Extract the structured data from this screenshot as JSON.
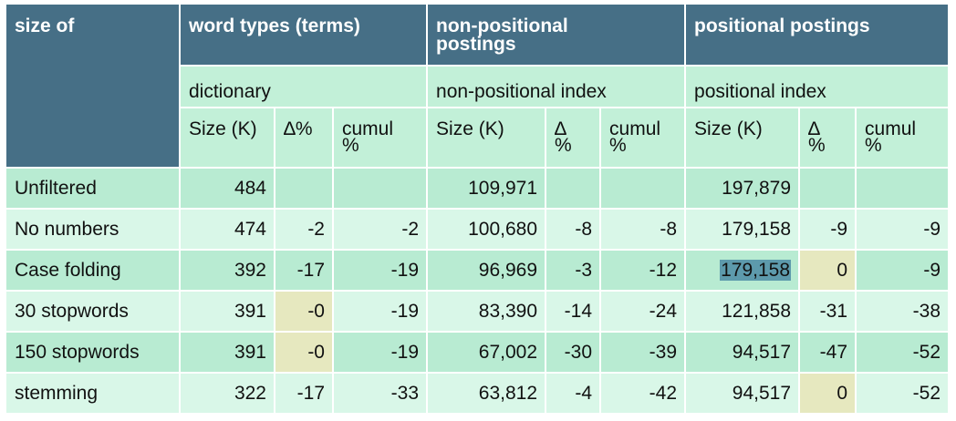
{
  "header": {
    "size_of": "size of",
    "groups": [
      "word types (terms)",
      "non-positional postings",
      "positional postings"
    ],
    "non_pos_line1": "non-positional",
    "non_pos_line2": "postings"
  },
  "subheader": [
    "dictionary",
    "non-positional index",
    "positional index"
  ],
  "columns": {
    "size_k": "Size (K)",
    "delta_pct": "∆%",
    "delta": "∆",
    "pct": "%",
    "cumul": "cumul",
    "cumul_pct": "%"
  },
  "rows": [
    {
      "label": "Unfiltered",
      "vals": [
        "484",
        "",
        "",
        "109,971",
        "",
        "",
        "197,879",
        "",
        ""
      ]
    },
    {
      "label": "No numbers",
      "vals": [
        "474",
        "-2",
        "-2",
        "100,680",
        "-8",
        "-8",
        "179,158",
        "-9",
        "-9"
      ]
    },
    {
      "label": "Case folding",
      "vals": [
        "392",
        "-17",
        "-19",
        "96,969",
        "-3",
        "-12",
        "179,158",
        "0",
        "-9"
      ]
    },
    {
      "label": "30 stopwords",
      "vals": [
        "391",
        "-0",
        "-19",
        "83,390",
        "-14",
        "-24",
        "121,858",
        "-31",
        "-38"
      ]
    },
    {
      "label": "150 stopwords",
      "vals": [
        "391",
        "-0",
        "-19",
        "67,002",
        "-30",
        "-39",
        "94,517",
        "-47",
        "-52"
      ]
    },
    {
      "label": "stemming",
      "vals": [
        "322",
        "-17",
        "-33",
        "63,812",
        "-4",
        "-42",
        "94,517",
        "0",
        "-52"
      ]
    }
  ],
  "colors": {
    "header_bg": "#466f86",
    "subheader_bg": "#c2f0d8",
    "row_dark": "#b8ebd2",
    "row_light": "#d9f7e8",
    "highlight_yellow": "#e6e8bf",
    "highlight_blue": "#5d9aac"
  }
}
